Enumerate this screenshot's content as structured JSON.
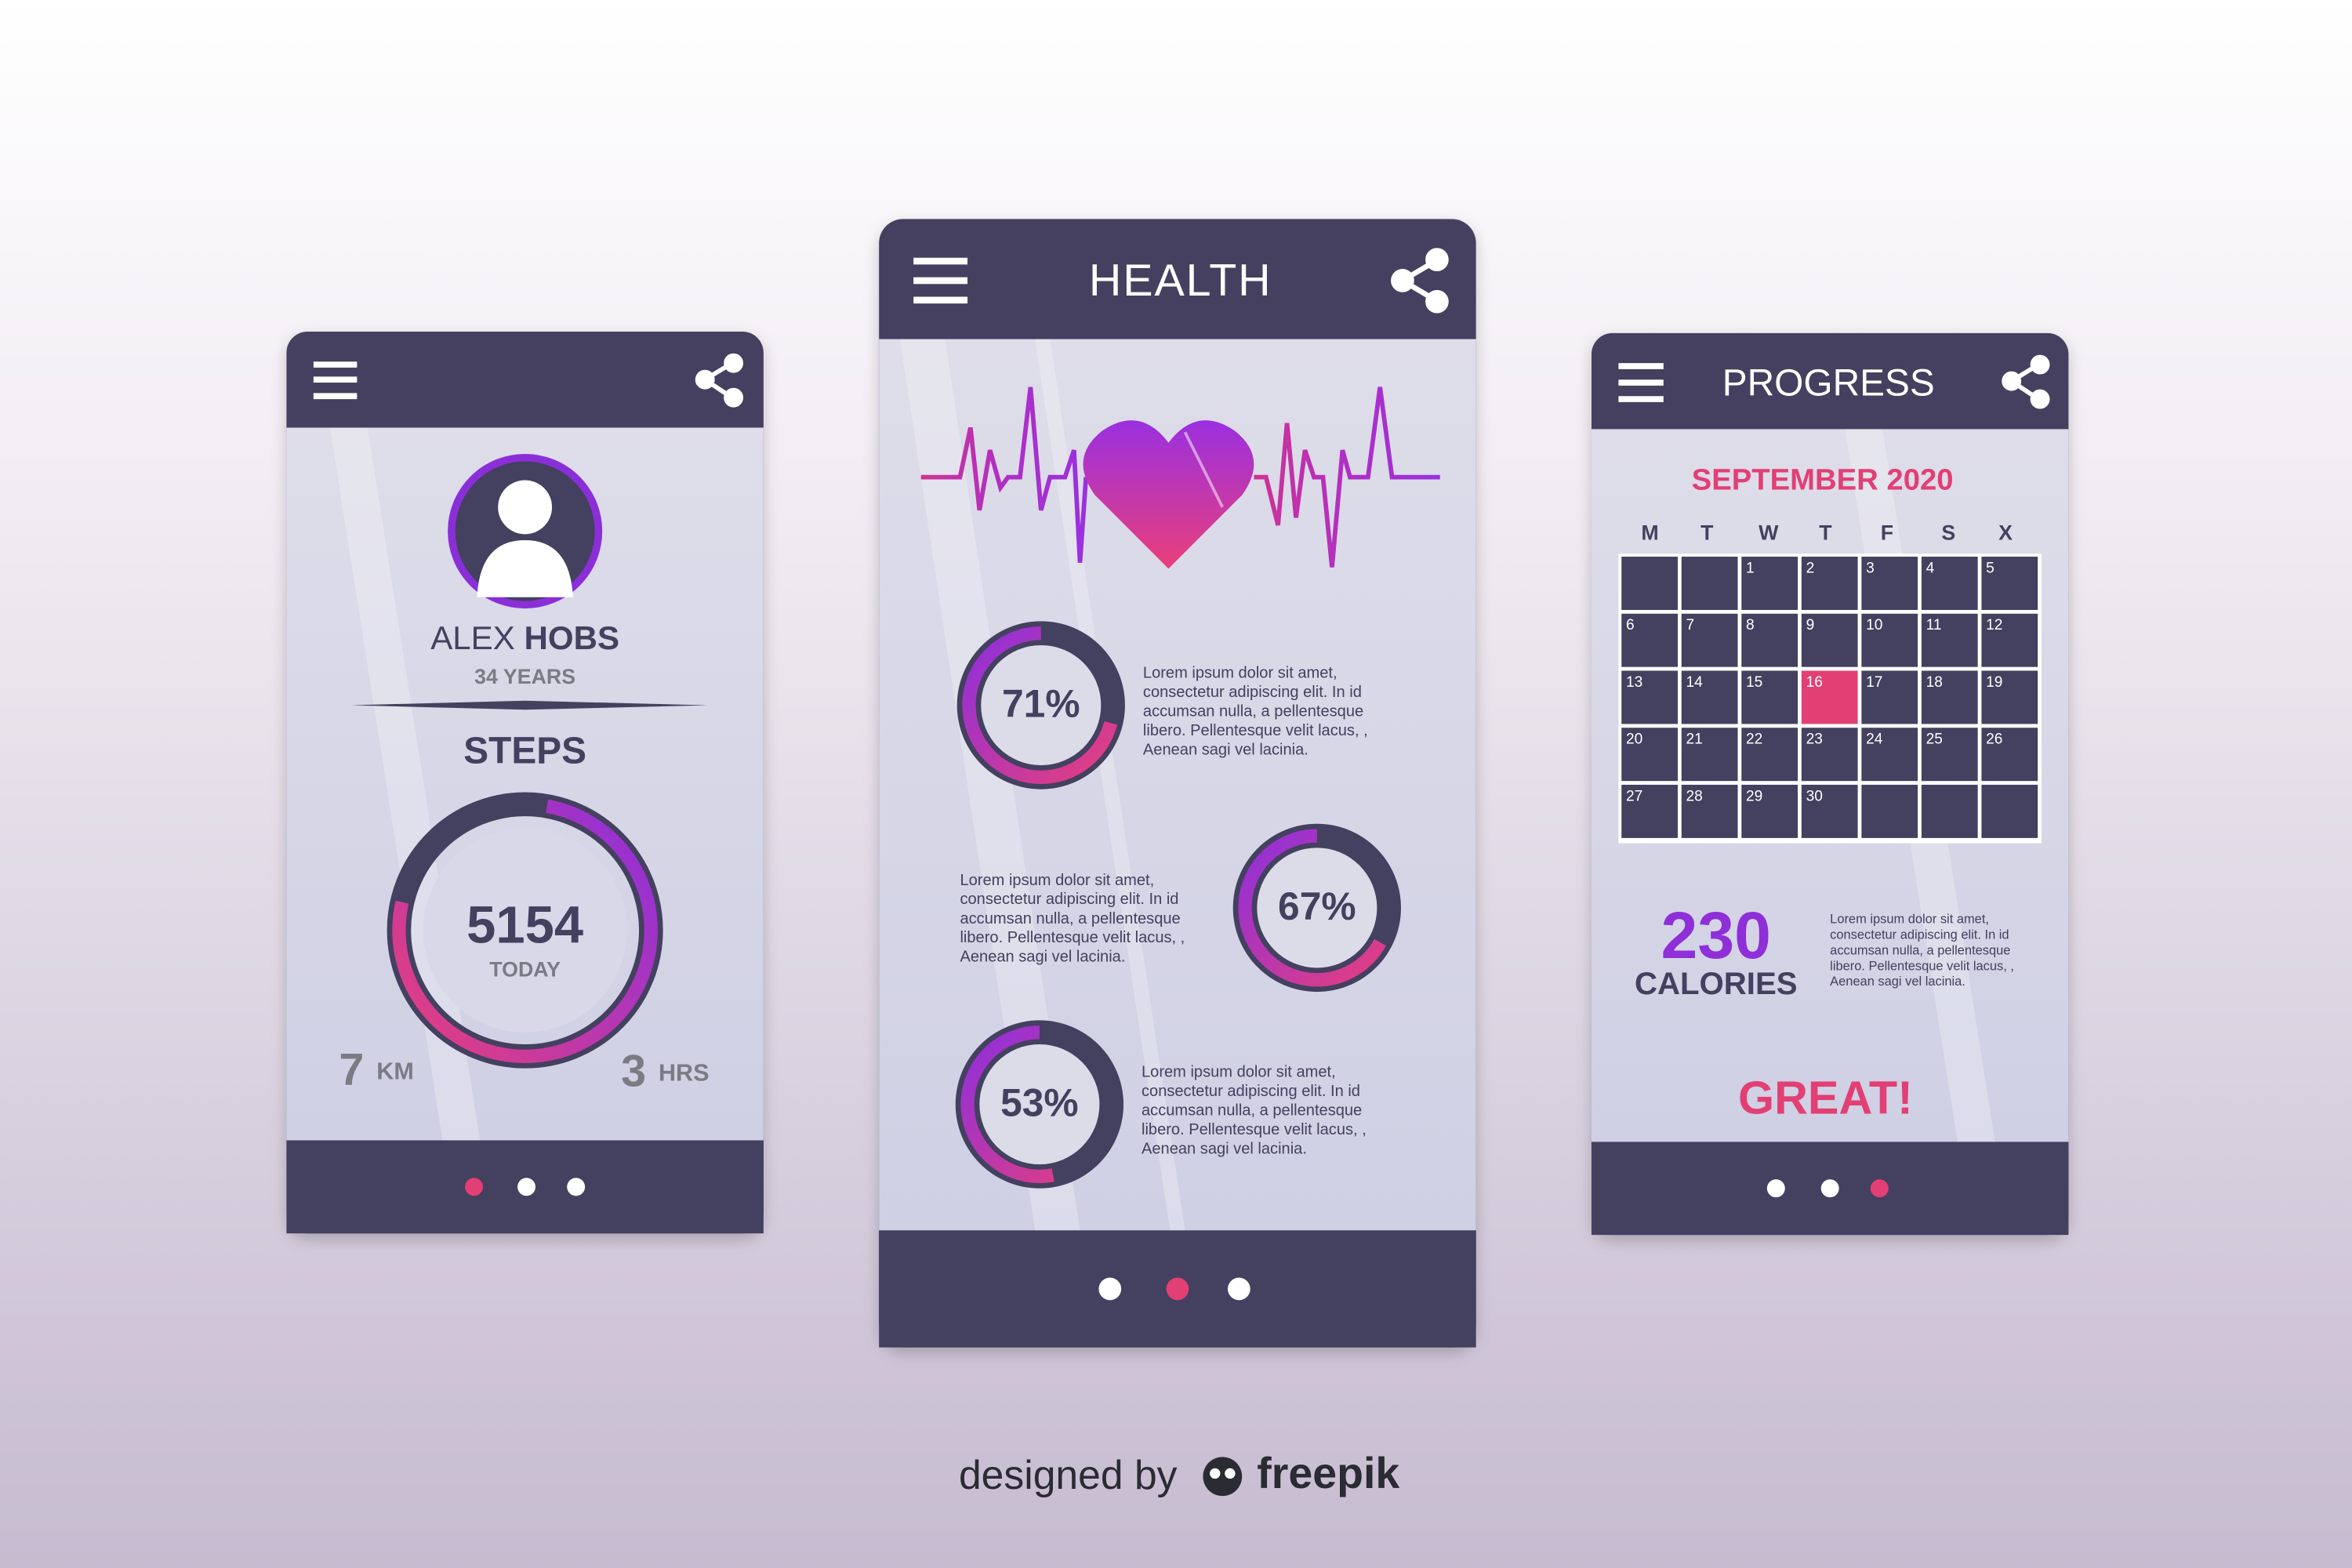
{
  "profile_screen": {
    "name_first": "ALEX",
    "name_last": "HOBS",
    "age": "34 YEARS",
    "steps_title": "STEPS",
    "steps_count": "5154",
    "steps_period": "TODAY",
    "distance": {
      "amount": "7",
      "unit": "KM"
    },
    "duration": {
      "amount": "3",
      "unit": "HRS"
    }
  },
  "health_screen": {
    "title": "HEALTH",
    "stats": [
      {
        "percent": {
          "value": 71,
          "label": "71%"
        },
        "lines": [
          "Lorem ipsum dolor sit amet,",
          "consectetur adipiscing elit. In id",
          "accumsan nulla, a pellentesque",
          "libero. Pellentesque velit lacus, ,",
          "Aenean sagi vel lacinia."
        ]
      },
      {
        "percent": {
          "value": 67,
          "label": "67%"
        },
        "lines": [
          "Lorem ipsum dolor sit amet,",
          "consectetur adipiscing elit. In id",
          "accumsan nulla, a pellentesque",
          "libero. Pellentesque velit lacus, ,",
          "Aenean sagi vel lacinia."
        ]
      },
      {
        "percent": {
          "value": 53,
          "label": "53%"
        },
        "lines": [
          "Lorem ipsum dolor sit amet,",
          "consectetur adipiscing elit. In id",
          "accumsan nulla, a pellentesque",
          "libero. Pellentesque velit lacus, ,",
          "Aenean sagi vel lacinia."
        ]
      }
    ]
  },
  "progress_screen": {
    "title": "PROGRESS",
    "month": "SEPTEMBER 2020",
    "weekdays": [
      "M",
      "T",
      "W",
      "T",
      "F",
      "S",
      "X"
    ],
    "weeks": [
      [
        null,
        null,
        1,
        2,
        3,
        4,
        5
      ],
      [
        6,
        7,
        8,
        9,
        10,
        11,
        12
      ],
      [
        13,
        14,
        15,
        16,
        17,
        18,
        19
      ],
      [
        20,
        21,
        22,
        23,
        24,
        25,
        26
      ],
      [
        27,
        28,
        29,
        30,
        null,
        null,
        null
      ]
    ],
    "highlighted_day": 16,
    "calories_amount": "230",
    "calories_label": "CALORIES",
    "lines": [
      "Lorem ipsum dolor sit amet,",
      "consectetur adipiscing elit. In id",
      "accumsan nulla, a pellentesque",
      "libero. Pellentesque velit lacus, ,",
      "Aenean sagi vel lacinia."
    ],
    "message": "GREAT!"
  },
  "credit": {
    "prefix": "designed by",
    "brand": "freepik"
  }
}
